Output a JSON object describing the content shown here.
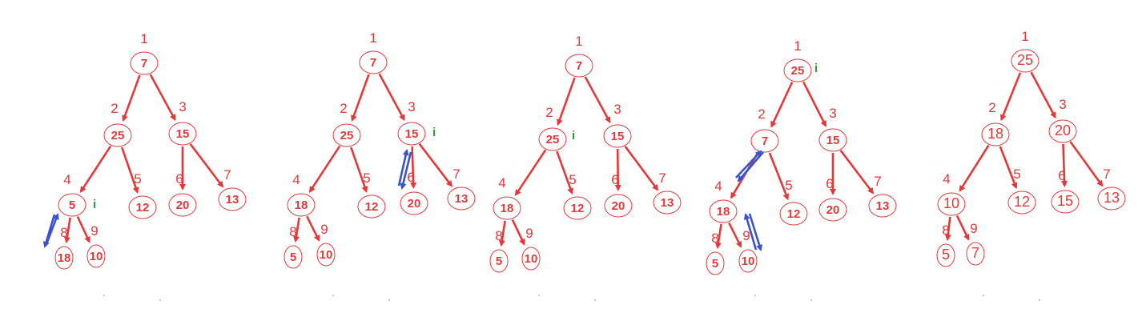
{
  "colors": {
    "node": "#e23a3a",
    "edge": "#e23a3a",
    "swap_arrow": "#3a53c8",
    "marker": "#2e9a3c",
    "background": "#ffffff"
  },
  "marker_label": "i",
  "trees": [
    {
      "nodes": [
        {
          "index": "1",
          "value": "7"
        },
        {
          "index": "2",
          "value": "25"
        },
        {
          "index": "3",
          "value": "15"
        },
        {
          "index": "4",
          "value": "5"
        },
        {
          "index": "5",
          "value": "12"
        },
        {
          "index": "6",
          "value": "20"
        },
        {
          "index": "7",
          "value": "13"
        },
        {
          "index": "8",
          "value": "18"
        },
        {
          "index": "9",
          "value": "10"
        }
      ],
      "marker_node": "4"
    },
    {
      "nodes": [
        {
          "index": "1",
          "value": "7"
        },
        {
          "index": "2",
          "value": "25"
        },
        {
          "index": "3",
          "value": "15"
        },
        {
          "index": "4",
          "value": "18"
        },
        {
          "index": "5",
          "value": "12"
        },
        {
          "index": "6",
          "value": "20"
        },
        {
          "index": "7",
          "value": "13"
        },
        {
          "index": "8",
          "value": "5"
        },
        {
          "index": "9",
          "value": "10"
        }
      ],
      "marker_node": "3"
    },
    {
      "nodes": [
        {
          "index": "1",
          "value": "7"
        },
        {
          "index": "2",
          "value": "25"
        },
        {
          "index": "3",
          "value": "15"
        },
        {
          "index": "4",
          "value": "18"
        },
        {
          "index": "5",
          "value": "12"
        },
        {
          "index": "6",
          "value": "20"
        },
        {
          "index": "7",
          "value": "13"
        },
        {
          "index": "8",
          "value": "5"
        },
        {
          "index": "9",
          "value": "10"
        }
      ],
      "marker_node": "2"
    },
    {
      "nodes": [
        {
          "index": "1",
          "value": "25"
        },
        {
          "index": "2",
          "value": "7"
        },
        {
          "index": "3",
          "value": "15"
        },
        {
          "index": "4",
          "value": "18"
        },
        {
          "index": "5",
          "value": "12"
        },
        {
          "index": "6",
          "value": "20"
        },
        {
          "index": "7",
          "value": "13"
        },
        {
          "index": "8",
          "value": "5"
        },
        {
          "index": "9",
          "value": "10"
        }
      ],
      "marker_node": "1"
    },
    {
      "nodes": [
        {
          "index": "1",
          "value": "25"
        },
        {
          "index": "2",
          "value": "18"
        },
        {
          "index": "3",
          "value": "20"
        },
        {
          "index": "4",
          "value": "10"
        },
        {
          "index": "5",
          "value": "12"
        },
        {
          "index": "6",
          "value": "15"
        },
        {
          "index": "7",
          "value": "13"
        },
        {
          "index": "8",
          "value": "5"
        },
        {
          "index": "9",
          "value": "7"
        }
      ],
      "marker_node": null
    }
  ]
}
